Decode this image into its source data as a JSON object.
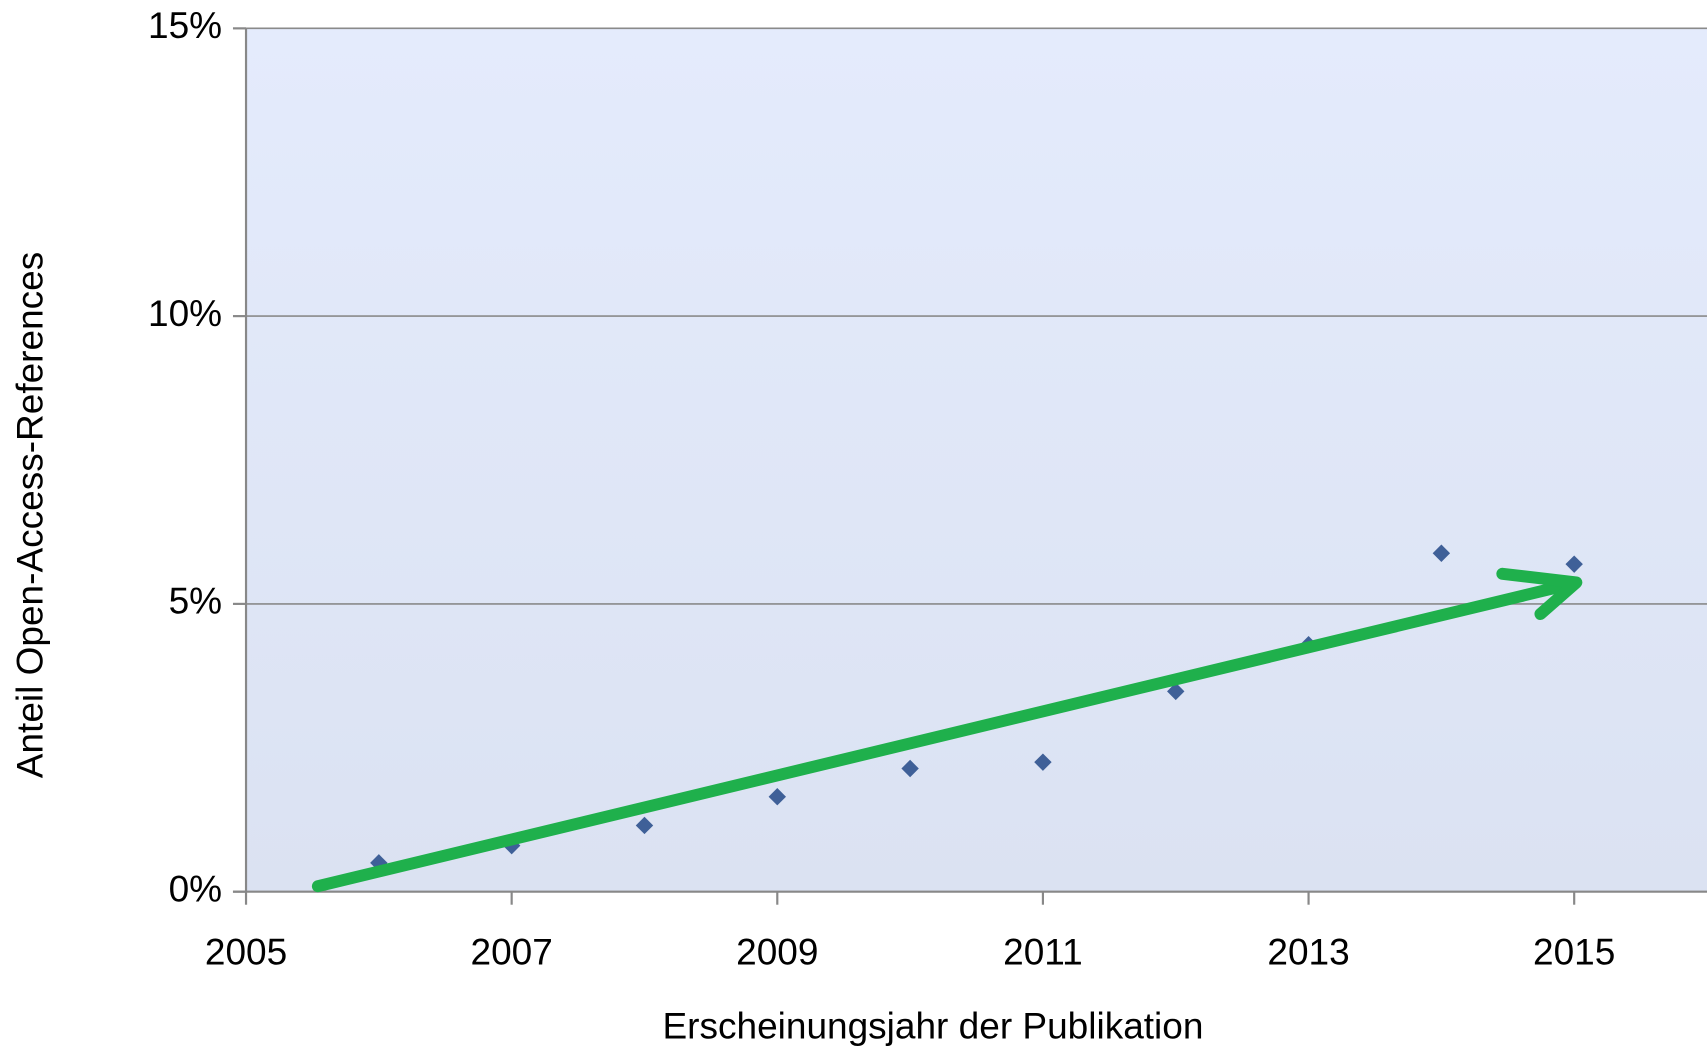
{
  "chart_data": {
    "type": "scatter",
    "xlabel": "Erscheinungsjahr der Publikation",
    "ylabel": "Anteil Open-Access-References",
    "x": [
      2006,
      2007,
      2008,
      2009,
      2010,
      2011,
      2012,
      2013,
      2014,
      2015
    ],
    "series": [
      {
        "color": "#3f6098",
        "values": [
          0.5,
          0.8,
          1.15,
          1.65,
          2.14,
          2.25,
          3.48,
          4.29,
          5.88,
          5.69
        ]
      }
    ],
    "xlim": [
      2005,
      2016
    ],
    "xticks": [
      2005,
      2007,
      2009,
      2011,
      2013,
      2015
    ],
    "ylim": [
      0,
      15
    ],
    "yticks": [
      {
        "value": 0,
        "label": "0%"
      },
      {
        "value": 5,
        "label": "5%"
      },
      {
        "value": 10,
        "label": "10%"
      },
      {
        "value": 15,
        "label": "15%"
      }
    ],
    "grid": true
  }
}
